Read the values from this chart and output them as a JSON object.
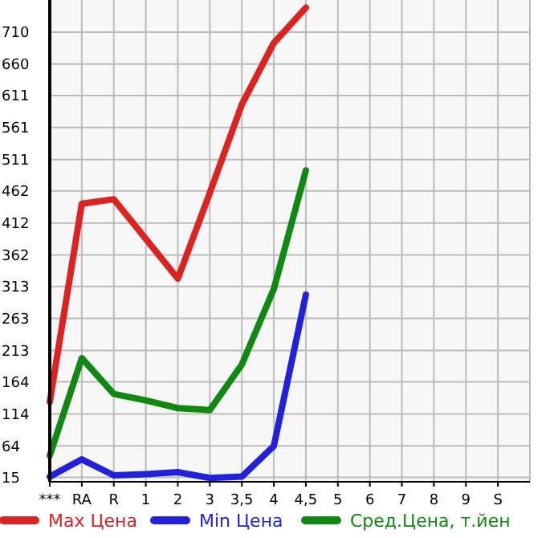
{
  "chart_data": {
    "type": "line",
    "categories": [
      "***",
      "RA",
      "R",
      "1",
      "2",
      "3",
      "3,5",
      "4",
      "4,5",
      "5",
      "6",
      "7",
      "8",
      "9",
      "S"
    ],
    "series": [
      {
        "name": "Max Цена",
        "color": "#dd2222",
        "values": [
          133,
          442,
          449,
          387,
          325,
          459,
          597,
          693,
          748,
          null,
          null,
          null,
          null,
          null,
          null
        ]
      },
      {
        "name": "Min Цена",
        "color": "#2222dd",
        "values": [
          16,
          43,
          18,
          20,
          23,
          14,
          16,
          64,
          300,
          null,
          null,
          null,
          null,
          null,
          null
        ]
      },
      {
        "name": "Сред.Цена, т.йен",
        "color": "#118811",
        "values": [
          49,
          201,
          145,
          135,
          123,
          120,
          191,
          309,
          494,
          null,
          null,
          null,
          null,
          null,
          null
        ]
      }
    ],
    "ylim": [
      8,
      760
    ],
    "yticks": [
      15,
      64,
      114,
      164,
      213,
      263,
      313,
      362,
      412,
      462,
      511,
      561,
      611,
      660,
      710
    ],
    "grid": true,
    "legend": "bottom",
    "marker": "none",
    "line_style": "solid"
  }
}
